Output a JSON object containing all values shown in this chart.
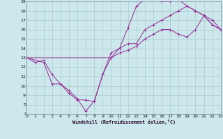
{
  "xlabel": "Windchill (Refroidissement éolien,°C)",
  "xlim": [
    0,
    23
  ],
  "ylim": [
    7,
    19
  ],
  "xticks": [
    0,
    1,
    2,
    3,
    4,
    5,
    6,
    7,
    8,
    9,
    10,
    11,
    12,
    13,
    14,
    15,
    16,
    17,
    18,
    19,
    20,
    21,
    22,
    23
  ],
  "yticks": [
    7,
    8,
    9,
    10,
    11,
    12,
    13,
    14,
    15,
    16,
    17,
    18,
    19
  ],
  "bg_color": "#cce8ec",
  "line_color": "#993399",
  "grid_color": "#aacccc",
  "line1_x": [
    0,
    1,
    2,
    3,
    4,
    5,
    6,
    7,
    8,
    9,
    10,
    11,
    12,
    13,
    14,
    15,
    16,
    17,
    18,
    19,
    20,
    21,
    22,
    23
  ],
  "line1_y": [
    13,
    12.5,
    12.7,
    11.2,
    10.2,
    9.2,
    8.5,
    8.5,
    8.3,
    11.2,
    13.0,
    13.5,
    13.8,
    14.2,
    15.0,
    15.5,
    16.0,
    16.0,
    15.5,
    15.2,
    16.0,
    17.5,
    16.5,
    16.0
  ],
  "line2_x": [
    0,
    10,
    11,
    12,
    13,
    14,
    15,
    16,
    17,
    18,
    19,
    20,
    21,
    22,
    23
  ],
  "line2_y": [
    13,
    13.0,
    14.0,
    16.2,
    18.5,
    19.2,
    19.3,
    19.0,
    19.0,
    19.2,
    18.5,
    18.0,
    17.5,
    16.5,
    16.0
  ],
  "line3_x": [
    0,
    2,
    3,
    4,
    5,
    6,
    7,
    8,
    9,
    10,
    11,
    12,
    13,
    14,
    15,
    16,
    17,
    18,
    19,
    20,
    21,
    22,
    23
  ],
  "line3_y": [
    13,
    12.5,
    10.2,
    10.2,
    9.5,
    8.6,
    7.3,
    8.4,
    11.2,
    13.5,
    14.0,
    14.5,
    14.5,
    16.0,
    16.5,
    17.0,
    17.5,
    18.0,
    18.5,
    18.0,
    17.5,
    17.0,
    16.0
  ]
}
